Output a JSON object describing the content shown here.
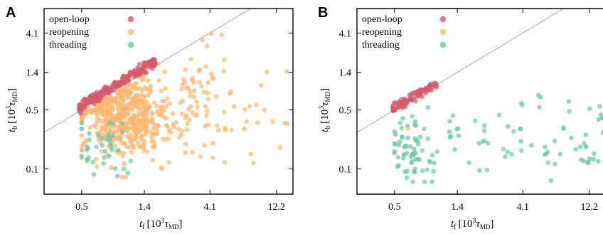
{
  "colors": {
    "open_loop": "#d45a6c",
    "reopening": "#fbb772",
    "threading": "#6cc6a2",
    "diagonal": "#9a9a9a"
  },
  "chart_data": [
    {
      "type": "scatter",
      "panel": "A",
      "xlabel": "t_f [10^3 τ_MD]",
      "ylabel": "t_b [10^3 τ_MD]",
      "x_scale": "log",
      "y_scale": "log",
      "xlim": [
        0.27,
        16
      ],
      "ylim": [
        0.05,
        8
      ],
      "x_ticks": [
        0.5,
        1.4,
        4.1,
        12.2
      ],
      "x_tick_labels": [
        "0.5",
        "1.4",
        "4.1",
        "12.2"
      ],
      "y_ticks": [
        0.1,
        0.5,
        1.4,
        4.1
      ],
      "y_tick_labels": [
        "0.1",
        "0.5",
        "1.4",
        "4.1"
      ],
      "diagonal": "y = x",
      "legend_position": "top-left",
      "series": [
        {
          "name": "open-loop",
          "n": 220,
          "trend": "tb ≈ 1.1 · tf",
          "x_range": [
            0.48,
            1.7
          ],
          "representative_points": [
            [
              0.5,
              0.56
            ],
            [
              0.6,
              0.68
            ],
            [
              0.75,
              0.85
            ],
            [
              0.9,
              1.0
            ],
            [
              1.1,
              1.2
            ],
            [
              1.4,
              1.5
            ],
            [
              1.7,
              1.75
            ]
          ]
        },
        {
          "name": "reopening",
          "n": 600,
          "x_range": [
            0.5,
            14
          ],
          "y_range": [
            0.08,
            4.0
          ],
          "representative_points": [
            [
              0.7,
              0.3
            ],
            [
              1.0,
              0.5
            ],
            [
              1.3,
              0.9
            ],
            [
              2.0,
              0.4
            ],
            [
              3.0,
              2.0
            ],
            [
              4.2,
              4.0
            ],
            [
              8.0,
              0.15
            ],
            [
              10.0,
              0.5
            ],
            [
              14.0,
              0.35
            ]
          ]
        },
        {
          "name": "threading",
          "n": 35,
          "x_range": [
            0.5,
            1.1
          ],
          "y_range": [
            0.08,
            0.35
          ],
          "representative_points": [
            [
              0.5,
              0.3
            ],
            [
              0.6,
              0.12
            ],
            [
              0.8,
              0.2
            ],
            [
              1.0,
              0.1
            ]
          ]
        }
      ]
    },
    {
      "type": "scatter",
      "panel": "B",
      "xlabel": "t_f [10^3 τ_MD]",
      "ylabel": "t_b [10^3 τ_MD]",
      "x_scale": "log",
      "y_scale": "log",
      "xlim": [
        0.27,
        16
      ],
      "ylim": [
        0.05,
        8
      ],
      "x_ticks": [
        0.5,
        1.4,
        4.1,
        12.2
      ],
      "x_tick_labels": [
        "0.5",
        "1.4",
        "4.1",
        "12.2"
      ],
      "y_ticks": [
        0.1,
        0.5,
        1.4,
        4.1
      ],
      "y_tick_labels": [
        "0.1",
        "0.5",
        "1.4",
        "4.1"
      ],
      "diagonal": "y = x",
      "legend_position": "top-left",
      "series": [
        {
          "name": "open-loop",
          "n": 90,
          "trend": "tb ≈ 1.05 · tf",
          "x_range": [
            0.48,
            1.0
          ],
          "representative_points": [
            [
              0.5,
              0.45
            ],
            [
              0.6,
              0.58
            ],
            [
              0.75,
              0.75
            ],
            [
              0.9,
              0.88
            ],
            [
              1.0,
              1.0
            ]
          ]
        },
        {
          "name": "reopening",
          "n": 1,
          "representative_points": [
            [
              0.62,
              0.3
            ]
          ]
        },
        {
          "name": "threading",
          "n": 130,
          "x_range": [
            0.5,
            16
          ],
          "y_range": [
            0.07,
            0.7
          ],
          "representative_points": [
            [
              0.5,
              0.2
            ],
            [
              0.7,
              0.1
            ],
            [
              2.0,
              0.2
            ],
            [
              4.0,
              0.6
            ],
            [
              6.0,
              0.15
            ],
            [
              8.0,
              0.3
            ],
            [
              12.0,
              0.12
            ],
            [
              15.0,
              0.4
            ]
          ]
        }
      ]
    }
  ]
}
